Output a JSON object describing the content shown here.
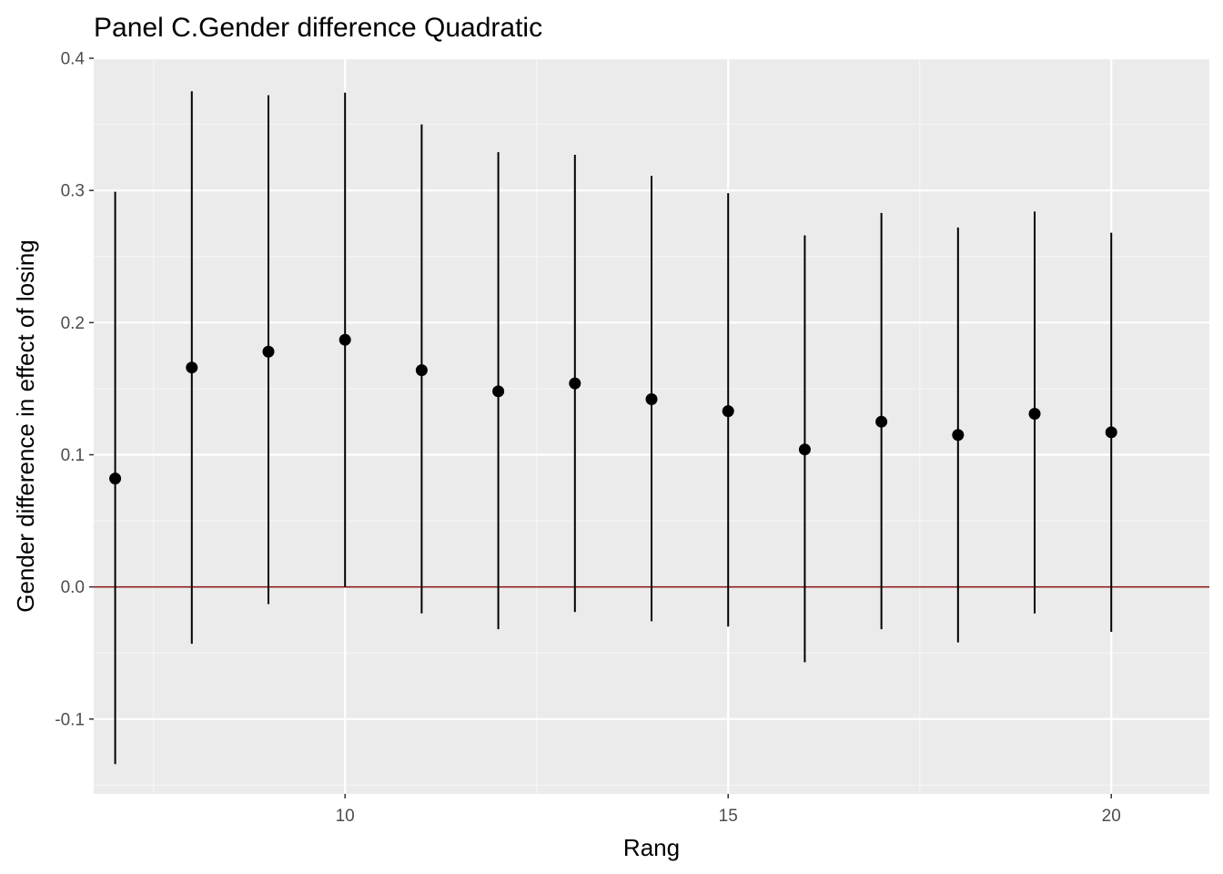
{
  "chart_data": {
    "type": "scatter",
    "title": "Panel C.Gender difference Quadratic",
    "xlabel": "Rang",
    "ylabel": "Gender difference in effect of losing",
    "xlim": [
      6.72,
      21.28
    ],
    "ylim": [
      -0.1566,
      0.4
    ],
    "x_ticks": [
      10,
      15,
      20
    ],
    "x_tick_labels": [
      "10",
      "15",
      "20"
    ],
    "x_minor_ticks": [
      7.5,
      12.5,
      17.5
    ],
    "y_ticks": [
      -0.1,
      0.0,
      0.1,
      0.2,
      0.3,
      0.4
    ],
    "y_tick_labels": [
      "-0.1",
      "0.0",
      "0.1",
      "0.2",
      "0.3",
      "0.4"
    ],
    "y_minor_ticks": [
      -0.15,
      -0.05,
      0.05,
      0.15,
      0.25,
      0.35
    ],
    "reference_line": {
      "y": 0.0,
      "color": "#8b1a1a"
    },
    "grid": true,
    "panel_background": "#ebebeb",
    "point_color": "#000000",
    "series": [
      {
        "x": [
          7,
          8,
          9,
          10,
          11,
          12,
          13,
          14,
          15,
          16,
          17,
          18,
          19,
          20
        ],
        "y": [
          0.082,
          0.166,
          0.178,
          0.187,
          0.164,
          0.148,
          0.154,
          0.142,
          0.133,
          0.104,
          0.125,
          0.115,
          0.131,
          0.117
        ],
        "lower": [
          -0.134,
          -0.043,
          -0.013,
          0.0,
          -0.02,
          -0.032,
          -0.019,
          -0.026,
          -0.03,
          -0.057,
          -0.032,
          -0.042,
          -0.02,
          -0.034
        ],
        "upper": [
          0.299,
          0.375,
          0.372,
          0.374,
          0.35,
          0.329,
          0.327,
          0.311,
          0.298,
          0.266,
          0.283,
          0.272,
          0.284,
          0.268
        ]
      }
    ]
  }
}
